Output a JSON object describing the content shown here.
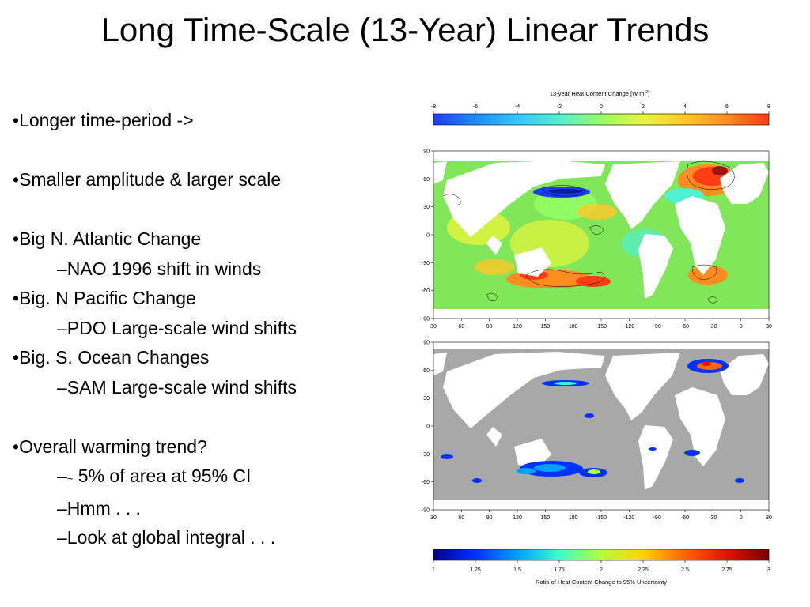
{
  "slide": {
    "title": "Long Time-Scale (13-Year) Linear Trends",
    "bullets": [
      {
        "level": 1,
        "prefix": "•",
        "text": "Longer time-period ->"
      },
      {
        "level": 0,
        "text": ""
      },
      {
        "level": 1,
        "prefix": "•",
        "text": "Smaller amplitude & larger scale"
      },
      {
        "level": 0,
        "text": ""
      },
      {
        "level": 1,
        "prefix": "•",
        "text": "Big N. Atlantic Change"
      },
      {
        "level": 2,
        "prefix": "–",
        "text": "NAO 1996 shift in winds"
      },
      {
        "level": 1,
        "prefix": "•",
        "text": "Big. N Pacific Change"
      },
      {
        "level": 2,
        "prefix": "–",
        "text": "PDO Large-scale wind shifts"
      },
      {
        "level": 1,
        "prefix": "•",
        "text": "Big. S. Ocean Changes"
      },
      {
        "level": 2,
        "prefix": "–",
        "text": "SAM Large-scale wind shifts"
      },
      {
        "level": 0,
        "text": ""
      },
      {
        "level": 1,
        "prefix": "•",
        "text": "Overall warming trend?"
      },
      {
        "level": 2,
        "prefix": "–",
        "tilde": "~",
        "text": " 5% of area at 95% CI"
      },
      {
        "level": 2,
        "prefix": "–",
        "text": "Hmm . . ."
      },
      {
        "level": 2,
        "prefix": "–",
        "text": "Look at global integral . . ."
      }
    ]
  },
  "figure": {
    "top_colorbar": {
      "title": "13-year Heat Content Change [W m",
      "title_sup": "-2",
      "title_end": "]",
      "ticks": [
        "-8",
        "-6",
        "-4",
        "-2",
        "0",
        "2",
        "4",
        "6",
        "8"
      ],
      "colors": [
        "#1e3cff",
        "#1e8cff",
        "#32c8ff",
        "#50f0d2",
        "#96ff64",
        "#e6f53c",
        "#ffc828",
        "#ff8c1e",
        "#ff3c14"
      ]
    },
    "map_trend": {
      "lat_ticks": [
        "90",
        "60",
        "30",
        "0",
        "-30",
        "-60",
        "-90"
      ],
      "lon_ticks": [
        "30",
        "60",
        "90",
        "120",
        "150",
        "180",
        "-150",
        "-120",
        "-90",
        "-60",
        "-30",
        "0",
        "30"
      ],
      "ocean_color": "#82e65a",
      "land_color": "#ffffff"
    },
    "map_ratio": {
      "lat_ticks": [
        "90",
        "60",
        "30",
        "0",
        "-30",
        "-60",
        "-90"
      ],
      "lon_ticks": [
        "30",
        "60",
        "90",
        "120",
        "150",
        "180",
        "-150",
        "-120",
        "-90",
        "-60",
        "-30",
        "0",
        "30"
      ],
      "ocean_color": "#a8a8a8",
      "land_color": "#ffffff"
    },
    "bottom_colorbar": {
      "title": "Ratio of Heat  Content Change to 95% Uncertainty",
      "ticks": [
        "1",
        "1.25",
        "1.5",
        "1.75",
        "2",
        "2.25",
        "2.5",
        "2.75",
        "3"
      ],
      "colors": [
        "#00008c",
        "#0032ff",
        "#00a0ff",
        "#3cffc8",
        "#b4ff3c",
        "#ffd200",
        "#ff6400",
        "#dc1400",
        "#7a0000"
      ]
    }
  }
}
